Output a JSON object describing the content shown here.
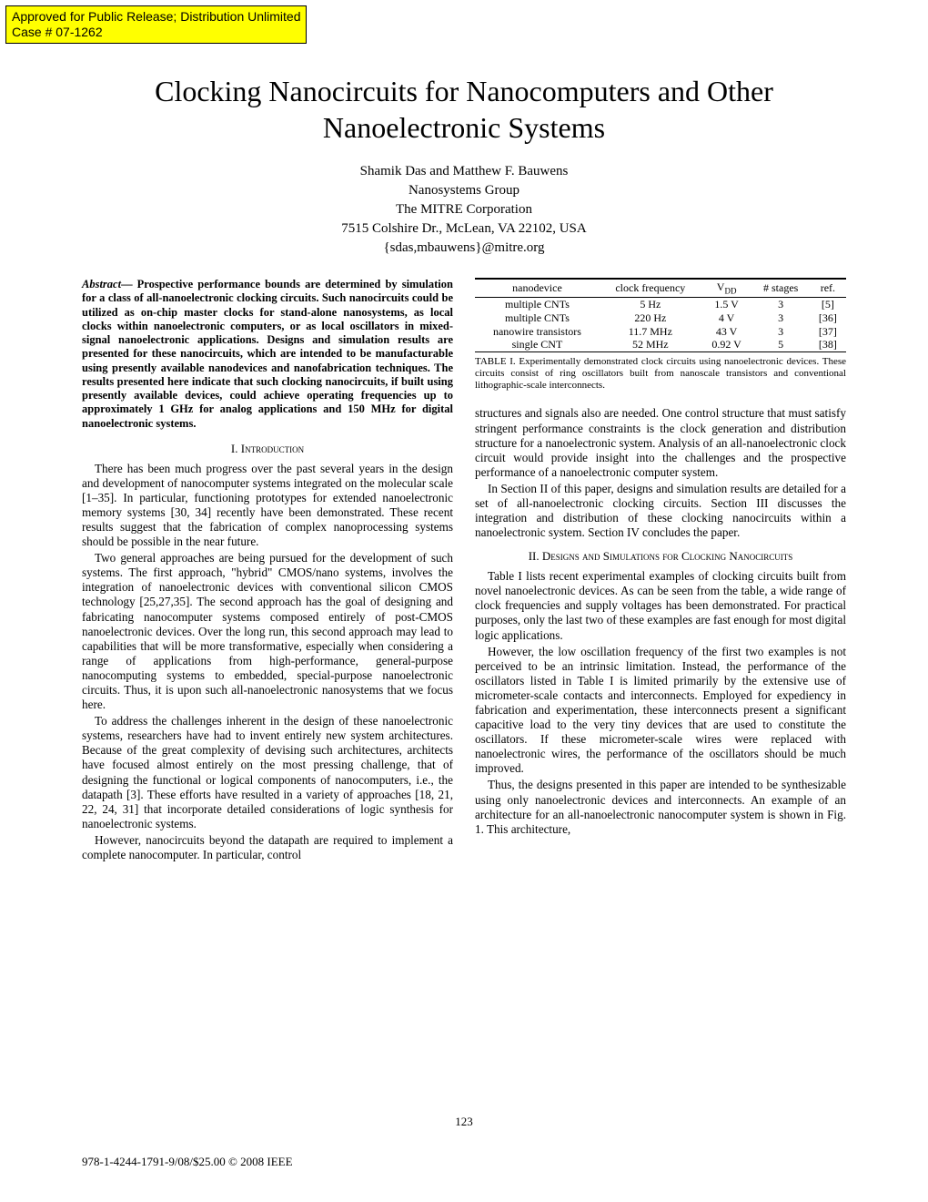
{
  "banner": {
    "line1": "Approved for Public Release; Distribution Unlimited",
    "line2": "Case # 07-1262"
  },
  "title": "Clocking Nanocircuits for Nanocomputers and Other Nanoelectronic Systems",
  "authors": {
    "names": "Shamik Das and Matthew F. Bauwens",
    "group": "Nanosystems Group",
    "org": "The MITRE Corporation",
    "address": "7515 Colshire Dr., McLean, VA 22102, USA",
    "email": "{sdas,mbauwens}@mitre.org"
  },
  "abstract": {
    "label": "Abstract",
    "text": "— Prospective performance bounds are determined by simulation for a class of all-nanoelectronic clocking circuits. Such nanocircuits could be utilized as on-chip master clocks for stand-alone nanosystems, as local clocks within nanoelectronic computers, or as local oscillators in mixed-signal nanoelectronic applications. Designs and simulation results are presented for these nanocircuits, which are intended to be manufacturable using presently available nanodevices and nanofabrication techniques. The results presented here indicate that such clocking nanocircuits, if built using presently available devices, could achieve operating frequencies up to approximately 1 GHz for analog applications and 150 MHz for digital nanoelectronic systems."
  },
  "section1": {
    "heading": "I.  Introduction",
    "p1": "There has been much progress over the past several years in the design and development of nanocomputer systems integrated on the molecular scale [1–35]. In particular, functioning prototypes for extended nanoelectronic memory systems [30, 34] recently have been demonstrated. These recent results suggest that the fabrication of complex nanoprocessing systems should be possible in the near future.",
    "p2": "Two general approaches are being pursued for the development of such systems. The first approach, \"hybrid\" CMOS/nano systems, involves the integration of nanoelectronic devices with conventional silicon CMOS technology [25,27,35]. The second approach has the goal of designing and fabricating nanocomputer systems composed entirely of post-CMOS nanoelectronic devices. Over the long run, this second approach may lead to capabilities that will be more transformative, especially when considering a range of applications from high-performance, general-purpose nanocomputing systems to embedded, special-purpose nanoelectronic circuits. Thus, it is upon such all-nanoelectronic nanosystems that we focus here.",
    "p3": "To address the challenges inherent in the design of these nanoelectronic systems, researchers have had to invent entirely new system architectures. Because of the great complexity of devising such architectures, architects have focused almost entirely on the most pressing challenge, that of designing the functional or logical components of nanocomputers, i.e., the datapath [3]. These efforts have resulted in a variety of approaches [18, 21, 22, 24, 31] that incorporate detailed considerations of logic synthesis for nanoelectronic systems.",
    "p4": "However, nanocircuits beyond the datapath are required to implement a complete nanocomputer. In particular, control"
  },
  "table1": {
    "headers": {
      "c1": "nanodevice",
      "c2": "clock frequency",
      "c3_pre": "V",
      "c3_sub": "DD",
      "c4": "# stages",
      "c5": "ref."
    },
    "rows": [
      {
        "c1": "multiple CNTs",
        "c2": "5 Hz",
        "c3": "1.5 V",
        "c4": "3",
        "c5": "[5]"
      },
      {
        "c1": "multiple CNTs",
        "c2": "220 Hz",
        "c3": "4 V",
        "c4": "3",
        "c5": "[36]"
      },
      {
        "c1": "nanowire transistors",
        "c2": "11.7 MHz",
        "c3": "43 V",
        "c4": "3",
        "c5": "[37]"
      },
      {
        "c1": "single CNT",
        "c2": "52 MHz",
        "c3": "0.92 V",
        "c4": "5",
        "c5": "[38]"
      }
    ],
    "caption_label": "TABLE I.",
    "caption_text": "  Experimentally demonstrated clock circuits using nanoelectronic devices. These circuits consist of ring oscillators built from nanoscale transistors and conventional lithographic-scale interconnects."
  },
  "rightcol": {
    "p1": "structures and signals also are needed. One control structure that must satisfy stringent performance constraints is the clock generation and distribution structure for a nanoelectronic system. Analysis of an all-nanoelectronic clock circuit would provide insight into the challenges and the prospective performance of a nanoelectronic computer system.",
    "p2": "In Section II of this paper, designs and simulation results are detailed for a set of all-nanoelectronic clocking circuits. Section III discusses the integration and distribution of these clocking nanocircuits within a nanoelectronic system. Section IV concludes the paper."
  },
  "section2": {
    "heading": "II.  Designs and Simulations for Clocking Nanocircuits",
    "p1": "Table I lists recent experimental examples of clocking circuits built from novel nanoelectronic devices. As can be seen from the table, a wide range of clock frequencies and supply voltages has been demonstrated. For practical purposes, only the last two of these examples are fast enough for most digital logic applications.",
    "p2": "However, the low oscillation frequency of the first two examples is not perceived to be an intrinsic limitation. Instead, the performance of the oscillators listed in Table I is limited primarily by the extensive use of micrometer-scale contacts and interconnects. Employed for expediency in fabrication and experimentation, these interconnects present a significant capacitive load to the very tiny devices that are used to constitute the oscillators. If these micrometer-scale wires were replaced with nanoelectronic wires, the performance of the oscillators should be much improved.",
    "p3": "Thus, the designs presented in this paper are intended to be synthesizable using only nanoelectronic devices and interconnects. An example of an architecture for an all-nanoelectronic nanocomputer system is shown in Fig. 1. This architecture,"
  },
  "footer": {
    "isbn": "978-1-4244-1791-9/08/$25.00 © 2008 IEEE",
    "page": "123"
  }
}
